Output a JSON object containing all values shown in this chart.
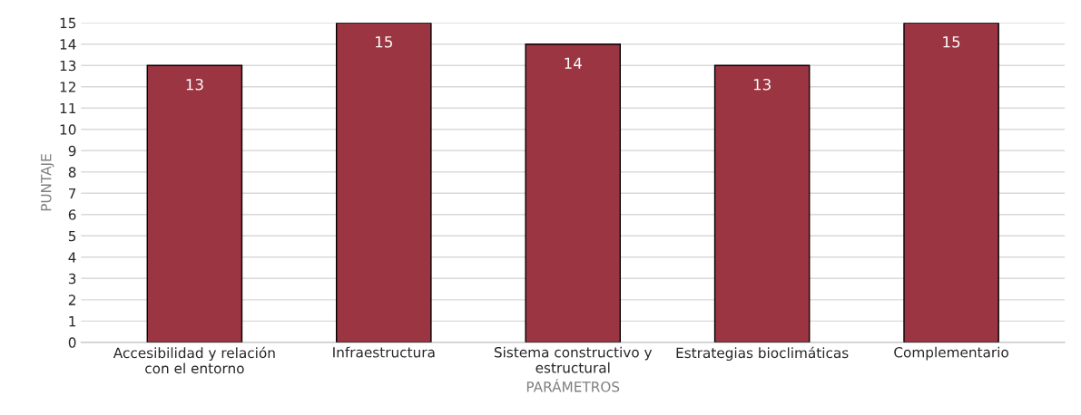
{
  "chart_data": {
    "type": "bar",
    "xlabel": "PARÁMETROS",
    "ylabel": "PUNTAJE",
    "categories": [
      "Accesibilidad y relación\ncon el entorno",
      "Infraestructura",
      "Sistema constructivo y\nestructural",
      "Estrategias bioclimáticas",
      "Complementario"
    ],
    "values": [
      13,
      15,
      14,
      13,
      15
    ],
    "color": "#9b3542",
    "ylim": [
      0,
      15
    ],
    "yticks": [
      0,
      1,
      2,
      3,
      4,
      5,
      6,
      7,
      8,
      9,
      10,
      11,
      12,
      13,
      14,
      15
    ],
    "grid": "y",
    "data_labels": true
  }
}
